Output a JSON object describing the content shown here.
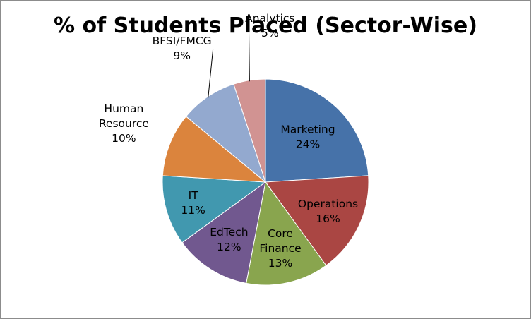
{
  "chart_data": {
    "type": "pie",
    "title": "% of Students Placed (Sector-Wise)",
    "categories": [
      "Marketing",
      "Operations",
      "Core Finance",
      "EdTech",
      "IT",
      "Human Resource",
      "BFSI/FMCG",
      "Analytics"
    ],
    "values": [
      24,
      16,
      13,
      12,
      11,
      10,
      9,
      5
    ],
    "value_labels": [
      "24%",
      "16%",
      "13%",
      "12%",
      "11%",
      "10%",
      "9%",
      "5%"
    ],
    "colors": [
      "#4672a9",
      "#aa4643",
      "#89a54e",
      "#71588f",
      "#4198af",
      "#db843d",
      "#93a9cf",
      "#d19392"
    ],
    "legend": "none"
  }
}
